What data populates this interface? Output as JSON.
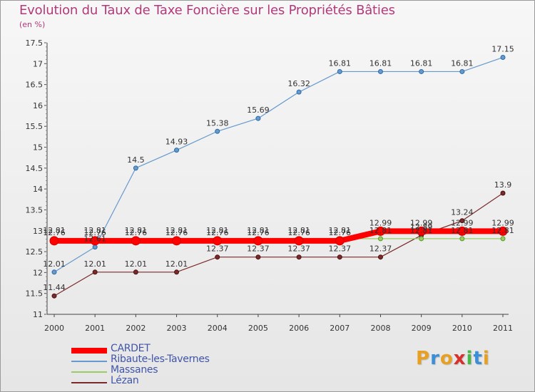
{
  "header": {
    "title": "Evolution du Taux de Taxe Foncière sur les Propriétés Bâties",
    "unit": "(en %)"
  },
  "logo": {
    "letters": [
      "P",
      "r",
      "o",
      "x",
      "i",
      "t",
      "i"
    ],
    "colors": [
      "#e8a020",
      "#3b8fd8",
      "#e8a020",
      "#d8302a",
      "#48b848",
      "#3b8fd8",
      "#e8a020"
    ]
  },
  "chart_data": {
    "type": "line",
    "title": "Evolution du Taux de Taxe Foncière sur les Propriétés Bâties",
    "ylabel": "(en %)",
    "xlabel": "",
    "categories": [
      "2000",
      "2001",
      "2002",
      "2003",
      "2004",
      "2005",
      "2006",
      "2007",
      "2008",
      "2009",
      "2010",
      "2011"
    ],
    "ylim": [
      11,
      17.5
    ],
    "yticks": [
      "11",
      "11.5",
      "12",
      "12.5",
      "13",
      "13.5",
      "14",
      "14.5",
      "15",
      "15.5",
      "16",
      "16.5",
      "17",
      "17.5"
    ],
    "grid": false,
    "legend_position": "bottom-left",
    "series": [
      {
        "name": "CARDET",
        "color": "#ff0000",
        "values": [
          12.76,
          12.76,
          12.76,
          12.76,
          12.76,
          12.76,
          12.76,
          12.76,
          12.99,
          12.99,
          12.99,
          12.99
        ],
        "labels": [
          "12.76",
          "12.76",
          "12.76",
          "12.76",
          "12.76",
          "12.76",
          "12.76",
          "12.76",
          "12.99",
          "12.99",
          "12.99",
          "12.99"
        ]
      },
      {
        "name": "Ribaute-les-Tavernes",
        "color": "#6699cc",
        "values": [
          12.01,
          12.61,
          14.5,
          14.93,
          15.38,
          15.69,
          16.32,
          16.81,
          16.81,
          16.81,
          16.81,
          17.15
        ],
        "labels": [
          "12.01",
          "12.61",
          "14.5",
          "14.93",
          "15.38",
          "15.69",
          "16.32",
          "16.81",
          "16.81",
          "16.81",
          "16.81",
          "17.15"
        ]
      },
      {
        "name": "Massanes",
        "color": "#99cc66",
        "values": [
          12.81,
          12.81,
          12.81,
          12.81,
          12.81,
          12.81,
          12.81,
          12.81,
          12.81,
          12.81,
          12.81,
          12.81
        ],
        "labels": [
          "12.81",
          "12.81",
          "12.81",
          "12.81",
          "12.81",
          "12.81",
          "12.81",
          "12.81",
          "12.81",
          "12.81",
          "12.81",
          "12.81"
        ]
      },
      {
        "name": "Lézan",
        "color": "#7a2a2a",
        "values": [
          11.44,
          12.01,
          12.01,
          12.01,
          12.37,
          12.37,
          12.37,
          12.37,
          12.37,
          12.89,
          13.24,
          13.9
        ],
        "labels": [
          "11.44",
          "12.01",
          "12.01",
          "12.01",
          "12.37",
          "12.37",
          "12.37",
          "12.37",
          "12.37",
          "12.89",
          "13.24",
          "13.9"
        ]
      }
    ]
  }
}
